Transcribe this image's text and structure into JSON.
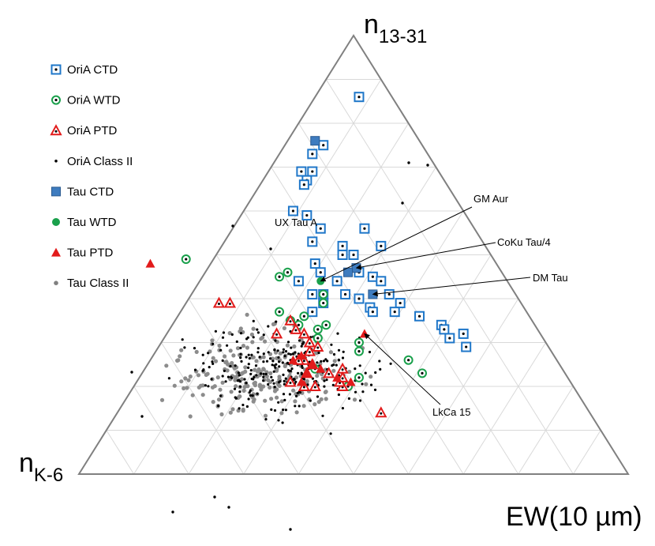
{
  "chart_data": {
    "type": "scatter",
    "subtype": "ternary",
    "axes": {
      "top": {
        "label": "n",
        "sub": "13-31"
      },
      "left": {
        "label": "n",
        "sub": "K-6"
      },
      "right": {
        "label": "EW(10 µm)"
      }
    },
    "grid": "on",
    "legend_position": "top-left",
    "legend": [
      {
        "label": "OriA CTD",
        "marker": "open-square",
        "color": "#1f77c9"
      },
      {
        "label": "OriA WTD",
        "marker": "open-circle",
        "color": "#19a04b"
      },
      {
        "label": "OriA PTD",
        "marker": "open-triangle",
        "color": "#e21b1b"
      },
      {
        "label": "OriA Class II",
        "marker": "small-dot",
        "color": "#000000"
      },
      {
        "label": "Tau CTD",
        "marker": "filled-square",
        "color": "#3e7cbf"
      },
      {
        "label": "Tau WTD",
        "marker": "filled-circle",
        "color": "#19a04b"
      },
      {
        "label": "Tau PTD",
        "marker": "filled-triangle",
        "color": "#e21b1b"
      },
      {
        "label": "Tau Class II",
        "marker": "dot",
        "color": "#808080"
      }
    ],
    "annotations": [
      {
        "label": "UX Tau A",
        "point": [
          0.63,
          0.48
        ]
      },
      {
        "label": "GM Aur",
        "point": [
          0.34,
          0.44
        ]
      },
      {
        "label": "CoKu Tau/4",
        "point": [
          0.26,
          0.47
        ]
      },
      {
        "label": "DM Tau",
        "point": [
          0.26,
          0.41
        ]
      },
      {
        "label": "LkCa 15",
        "point": [
          0.32,
          0.32
        ]
      }
    ],
    "series": [
      {
        "name": "OriA CTD",
        "marker": "open-square",
        "points": [
          [
            0.06,
            0.86
          ],
          [
            0.18,
            0.75
          ],
          [
            0.21,
            0.73
          ],
          [
            0.25,
            0.69
          ],
          [
            0.23,
            0.69
          ],
          [
            0.25,
            0.67
          ],
          [
            0.26,
            0.66
          ],
          [
            0.29,
            0.59
          ],
          [
            0.31,
            0.6
          ],
          [
            0.28,
            0.56
          ],
          [
            0.2,
            0.56
          ],
          [
            0.31,
            0.53
          ],
          [
            0.26,
            0.52
          ],
          [
            0.27,
            0.5
          ],
          [
            0.25,
            0.5
          ],
          [
            0.19,
            0.52
          ],
          [
            0.26,
            0.46
          ],
          [
            0.33,
            0.48
          ],
          [
            0.24,
            0.45
          ],
          [
            0.23,
            0.44
          ],
          [
            0.38,
            0.44
          ],
          [
            0.23,
            0.41
          ],
          [
            0.37,
            0.41
          ],
          [
            0.22,
            0.39
          ],
          [
            0.31,
            0.41
          ],
          [
            0.35,
            0.41
          ],
          [
            0.28,
            0.38
          ],
          [
            0.36,
            0.39
          ],
          [
            0.24,
            0.37
          ],
          [
            0.2,
            0.36
          ],
          [
            0.17,
            0.34
          ],
          [
            0.17,
            0.33
          ],
          [
            0.28,
            0.37
          ],
          [
            0.14,
            0.32
          ],
          [
            0.15,
            0.29
          ],
          [
            0.17,
            0.31
          ],
          [
            0.29,
            0.4
          ],
          [
            0.31,
            0.44
          ],
          [
            0.39,
            0.37
          ],
          [
            0.33,
            0.46
          ]
        ]
      },
      {
        "name": "OriA WTD",
        "marker": "open-circle",
        "points": [
          [
            0.56,
            0.49
          ],
          [
            0.41,
            0.45
          ],
          [
            0.39,
            0.46
          ],
          [
            0.41,
            0.36
          ],
          [
            0.34,
            0.3
          ],
          [
            0.35,
            0.28
          ],
          [
            0.4,
            0.33
          ],
          [
            0.38,
            0.34
          ],
          [
            0.44,
            0.35
          ],
          [
            0.43,
            0.34
          ],
          [
            0.41,
            0.31
          ],
          [
            0.36,
            0.39
          ],
          [
            0.45,
            0.37
          ],
          [
            0.45,
            0.24
          ],
          [
            0.41,
            0.2
          ],
          [
            0.27,
            0.26
          ],
          [
            0.26,
            0.23
          ],
          [
            0.38,
            0.22
          ],
          [
            0.41,
            0.31
          ],
          [
            0.35,
            0.41
          ]
        ]
      },
      {
        "name": "OriA PTD",
        "marker": "open-triangle",
        "points": [
          [
            0.55,
            0.39
          ],
          [
            0.53,
            0.39
          ],
          [
            0.44,
            0.35
          ],
          [
            0.43,
            0.32
          ],
          [
            0.48,
            0.32
          ],
          [
            0.51,
            0.21
          ],
          [
            0.47,
            0.23
          ],
          [
            0.42,
            0.2
          ],
          [
            0.47,
            0.2
          ],
          [
            0.49,
            0.2
          ],
          [
            0.46,
            0.26
          ],
          [
            0.45,
            0.25
          ],
          [
            0.43,
            0.23
          ],
          [
            0.42,
            0.21
          ],
          [
            0.47,
            0.26
          ],
          [
            0.44,
            0.28
          ],
          [
            0.38,
            0.14
          ],
          [
            0.4,
            0.24
          ],
          [
            0.41,
            0.22
          ],
          [
            0.42,
            0.29
          ],
          [
            0.43,
            0.3
          ],
          [
            0.44,
            0.33
          ]
        ]
      },
      {
        "name": "Tau CTD",
        "marker": "filled-square",
        "points": [
          [
            0.19,
            0.76
          ],
          [
            0.26,
            0.47
          ],
          [
            0.26,
            0.41
          ],
          [
            0.28,
            0.46
          ]
        ]
      },
      {
        "name": "Tau WTD",
        "marker": "filled-circle",
        "points": [
          [
            0.34,
            0.44
          ]
        ]
      },
      {
        "name": "Tau PTD",
        "marker": "filled-triangle",
        "points": [
          [
            0.63,
            0.48
          ],
          [
            0.32,
            0.32
          ],
          [
            0.47,
            0.23
          ],
          [
            0.45,
            0.25
          ],
          [
            0.44,
            0.24
          ],
          [
            0.48,
            0.26
          ],
          [
            0.46,
            0.27
          ],
          [
            0.49,
            0.21
          ],
          [
            0.42,
            0.22
          ],
          [
            0.4,
            0.21
          ]
        ]
      }
    ]
  }
}
